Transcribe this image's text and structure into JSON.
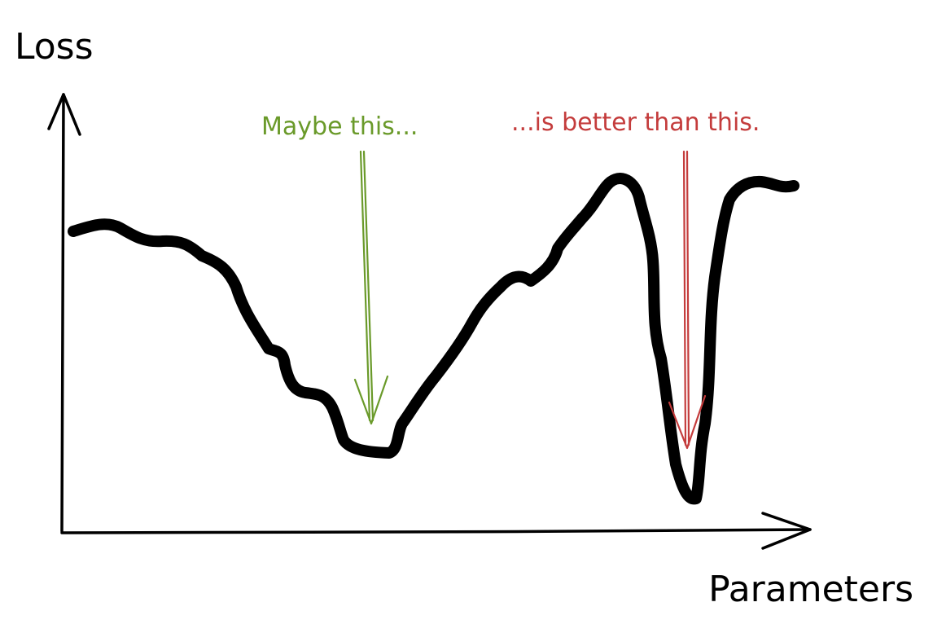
{
  "labels": {
    "y_axis": "Loss",
    "x_axis": "Parameters"
  },
  "annotations": {
    "wide_minimum": "Maybe this...",
    "sharp_minimum": "...is better than this."
  },
  "colors": {
    "curve": "#000000",
    "axes": "#000000",
    "wide_minimum": "#6a9a2a",
    "sharp_minimum": "#c43c3c"
  }
}
